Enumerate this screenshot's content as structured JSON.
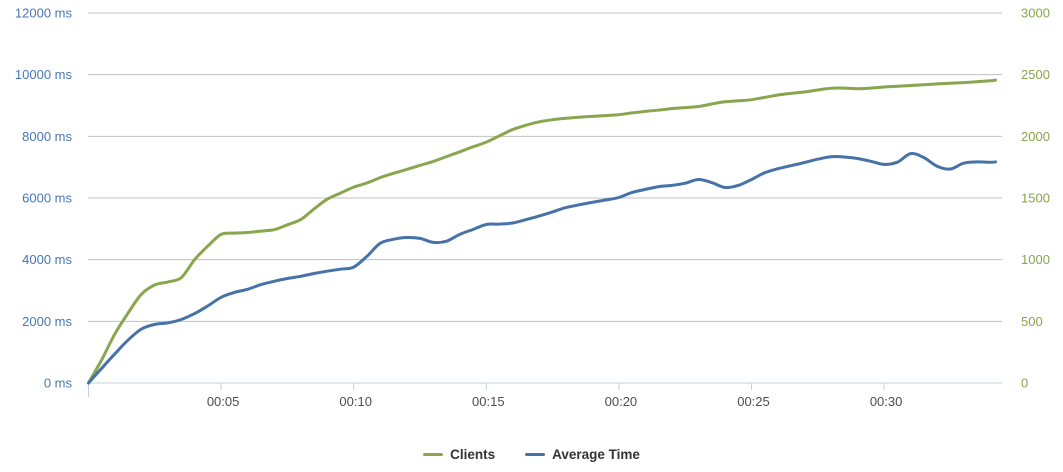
{
  "chart_data": {
    "type": "line",
    "title": "",
    "grid": {
      "color": "#C0C0C0",
      "zero_line_color": "#C0D0E0",
      "tick_color": "#C0D0E0",
      "grid_on": true
    },
    "x_axis": {
      "label_color": "#4D4D4D",
      "range_minutes": [
        0,
        34.45
      ],
      "ticks": [
        {
          "minute": 5,
          "label": "00:05"
        },
        {
          "minute": 10,
          "label": "00:10"
        },
        {
          "minute": 15,
          "label": "00:15"
        },
        {
          "minute": 20,
          "label": "00:20"
        },
        {
          "minute": 25,
          "label": "00:25"
        },
        {
          "minute": 30,
          "label": "00:30"
        }
      ]
    },
    "y_axis_left": {
      "color": "#4776B5",
      "range": [
        0,
        12000
      ],
      "values": [
        0,
        2000,
        4000,
        6000,
        8000,
        10000,
        12000
      ],
      "labels": [
        "0 ms",
        "2000 ms",
        "4000 ms",
        "6000 ms",
        "8000 ms",
        "10000 ms",
        "12000 ms"
      ]
    },
    "y_axis_right": {
      "color": "#89A54E",
      "range": [
        0,
        3000
      ],
      "values": [
        0,
        500,
        1000,
        1500,
        2000,
        2500,
        3000
      ],
      "labels": [
        "0",
        "500",
        "1000",
        "1500",
        "2000",
        "2500",
        "3000"
      ]
    },
    "legend": {
      "position": "bottom-center"
    },
    "series": [
      {
        "name": "Clients",
        "color": "#89A54E",
        "axis": "right",
        "points": [
          [
            0,
            0
          ],
          [
            0.5,
            190
          ],
          [
            1,
            400
          ],
          [
            1.5,
            570
          ],
          [
            2,
            720
          ],
          [
            2.5,
            795
          ],
          [
            3,
            820
          ],
          [
            3.5,
            855
          ],
          [
            4,
            1000
          ],
          [
            4.5,
            1110
          ],
          [
            5,
            1205
          ],
          [
            5.5,
            1215
          ],
          [
            6,
            1220
          ],
          [
            6.5,
            1232
          ],
          [
            7,
            1243
          ],
          [
            7.5,
            1283
          ],
          [
            8,
            1325
          ],
          [
            8.5,
            1410
          ],
          [
            9,
            1490
          ],
          [
            9.5,
            1540
          ],
          [
            10,
            1588
          ],
          [
            10.5,
            1622
          ],
          [
            11,
            1665
          ],
          [
            11.5,
            1700
          ],
          [
            12,
            1732
          ],
          [
            12.5,
            1765
          ],
          [
            13,
            1797
          ],
          [
            13.5,
            1836
          ],
          [
            14,
            1875
          ],
          [
            14.5,
            1915
          ],
          [
            15,
            1953
          ],
          [
            15.5,
            2005
          ],
          [
            16,
            2055
          ],
          [
            16.5,
            2090
          ],
          [
            17,
            2118
          ],
          [
            17.5,
            2135
          ],
          [
            18,
            2146
          ],
          [
            18.5,
            2155
          ],
          [
            19,
            2162
          ],
          [
            19.5,
            2168
          ],
          [
            20,
            2176
          ],
          [
            20.5,
            2190
          ],
          [
            21,
            2202
          ],
          [
            21.5,
            2213
          ],
          [
            22,
            2225
          ],
          [
            22.5,
            2233
          ],
          [
            23,
            2242
          ],
          [
            23.5,
            2262
          ],
          [
            24,
            2280
          ],
          [
            24.5,
            2288
          ],
          [
            25,
            2297
          ],
          [
            25.5,
            2316
          ],
          [
            26,
            2335
          ],
          [
            26.5,
            2348
          ],
          [
            27,
            2360
          ],
          [
            27.5,
            2376
          ],
          [
            28,
            2390
          ],
          [
            28.5,
            2391
          ],
          [
            29,
            2386
          ],
          [
            29.5,
            2391
          ],
          [
            30,
            2400
          ],
          [
            30.5,
            2406
          ],
          [
            31,
            2412
          ],
          [
            31.5,
            2418
          ],
          [
            32,
            2425
          ],
          [
            32.5,
            2430
          ],
          [
            33,
            2436
          ],
          [
            33.5,
            2443
          ],
          [
            34,
            2450
          ],
          [
            34.2,
            2456
          ]
        ]
      },
      {
        "name": "Average Time",
        "color": "#4572A7",
        "axis": "left",
        "points": [
          [
            0,
            0
          ],
          [
            0.5,
            480
          ],
          [
            1,
            950
          ],
          [
            1.5,
            1400
          ],
          [
            2,
            1750
          ],
          [
            2.5,
            1900
          ],
          [
            3,
            1950
          ],
          [
            3.5,
            2060
          ],
          [
            4,
            2250
          ],
          [
            4.5,
            2500
          ],
          [
            5,
            2780
          ],
          [
            5.5,
            2940
          ],
          [
            6,
            3040
          ],
          [
            6.5,
            3190
          ],
          [
            7,
            3300
          ],
          [
            7.5,
            3390
          ],
          [
            8,
            3460
          ],
          [
            8.5,
            3550
          ],
          [
            9,
            3625
          ],
          [
            9.5,
            3690
          ],
          [
            10,
            3760
          ],
          [
            10.5,
            4110
          ],
          [
            11,
            4530
          ],
          [
            11.5,
            4660
          ],
          [
            12,
            4720
          ],
          [
            12.5,
            4690
          ],
          [
            13,
            4560
          ],
          [
            13.5,
            4600
          ],
          [
            14,
            4820
          ],
          [
            14.5,
            4980
          ],
          [
            15,
            5140
          ],
          [
            15.5,
            5155
          ],
          [
            16,
            5190
          ],
          [
            16.5,
            5300
          ],
          [
            17,
            5420
          ],
          [
            17.5,
            5550
          ],
          [
            18,
            5690
          ],
          [
            18.5,
            5780
          ],
          [
            19,
            5860
          ],
          [
            19.5,
            5935
          ],
          [
            20,
            6020
          ],
          [
            20.5,
            6180
          ],
          [
            21,
            6280
          ],
          [
            21.5,
            6370
          ],
          [
            22,
            6410
          ],
          [
            22.5,
            6480
          ],
          [
            23,
            6600
          ],
          [
            23.5,
            6500
          ],
          [
            24,
            6340
          ],
          [
            24.5,
            6410
          ],
          [
            25,
            6600
          ],
          [
            25.5,
            6820
          ],
          [
            26,
            6950
          ],
          [
            26.5,
            7050
          ],
          [
            27,
            7150
          ],
          [
            27.5,
            7260
          ],
          [
            28,
            7340
          ],
          [
            28.5,
            7330
          ],
          [
            29,
            7280
          ],
          [
            29.5,
            7190
          ],
          [
            30,
            7090
          ],
          [
            30.5,
            7160
          ],
          [
            31,
            7440
          ],
          [
            31.5,
            7310
          ],
          [
            32,
            7030
          ],
          [
            32.5,
            6940
          ],
          [
            33,
            7130
          ],
          [
            33.5,
            7170
          ],
          [
            34,
            7160
          ],
          [
            34.2,
            7170
          ]
        ]
      }
    ]
  }
}
